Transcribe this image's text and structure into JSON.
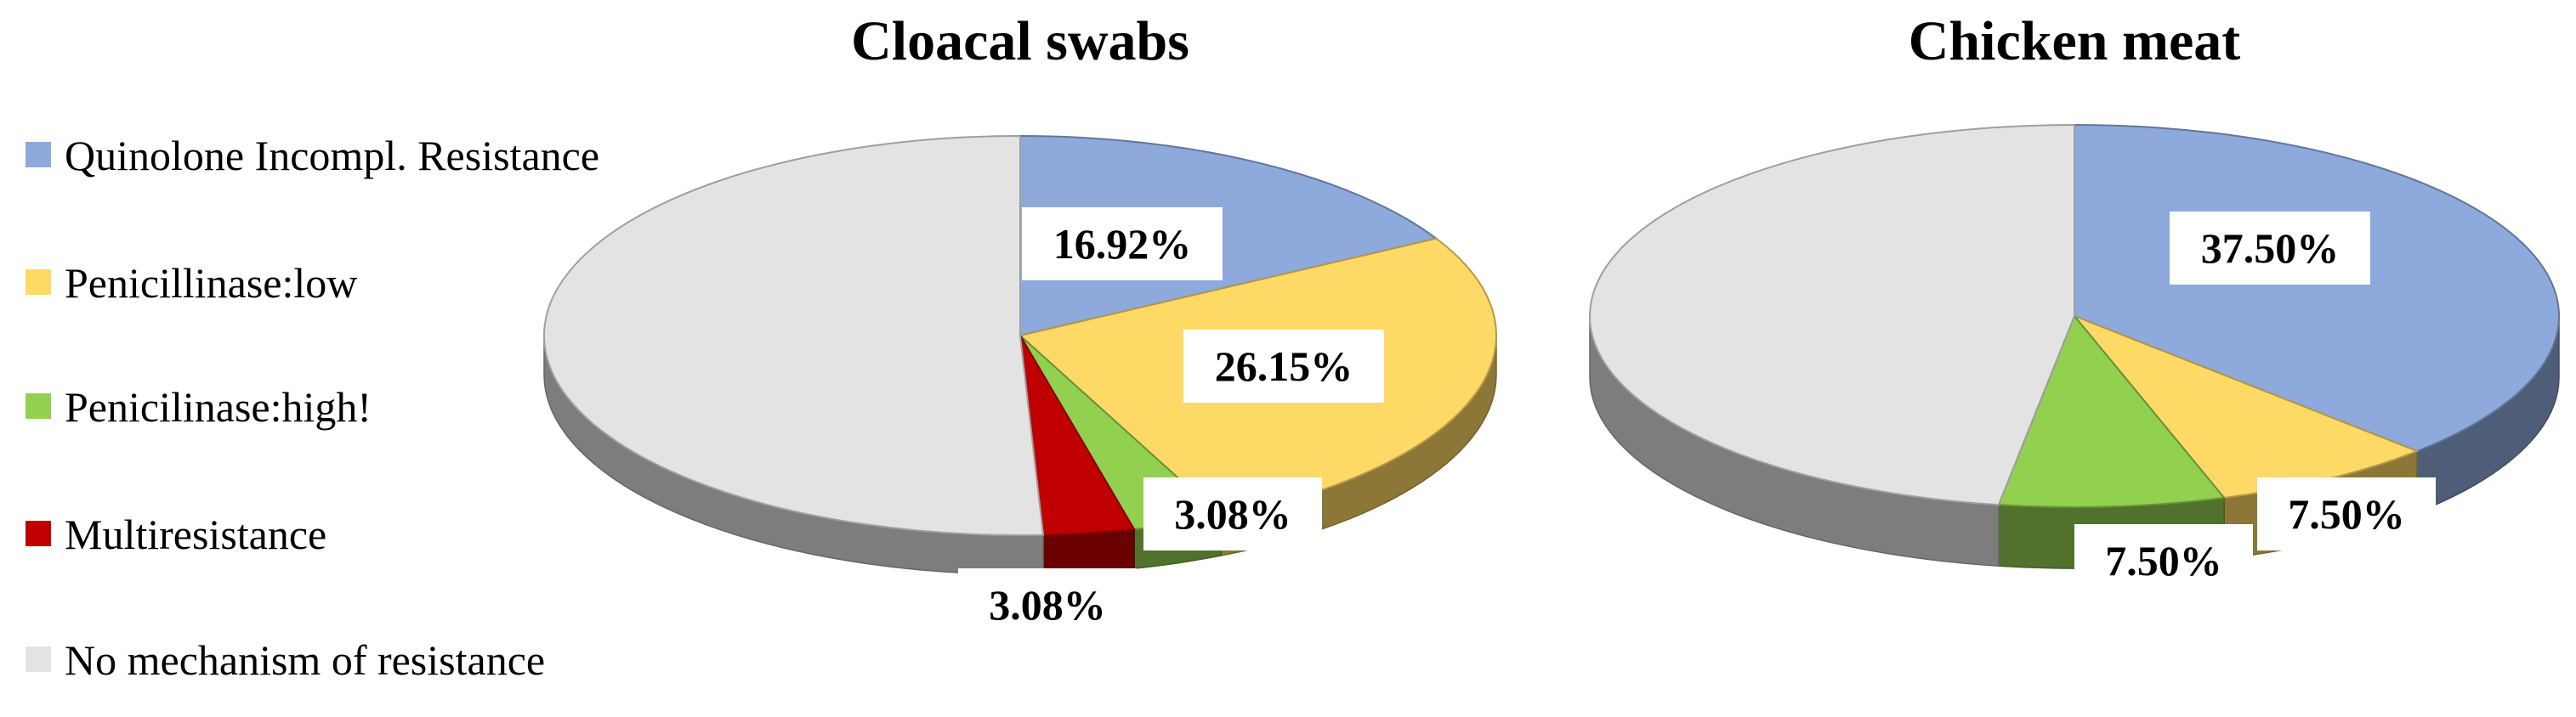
{
  "legend": [
    {
      "label": "Quinolone Incompl. Resistance",
      "color": "#8EA9DB"
    },
    {
      "label": "Penicillinase:low",
      "color": "#FFD966"
    },
    {
      "label": "Penicilinase:high!",
      "color": "#92D050"
    },
    {
      "label": "Multiresistance",
      "color": "#C00000"
    },
    {
      "label": "No mechanism of resistance",
      "color": "#E3E3E3"
    }
  ],
  "chart_data": [
    {
      "type": "pie",
      "title": "Cloacal swabs",
      "slices": [
        {
          "name": "Quinolone Incompl. Resistance",
          "value": 16.92,
          "label": "16.92%",
          "color": "#8EA9DB"
        },
        {
          "name": "Penicillinase:low",
          "value": 26.15,
          "label": "26.15%",
          "color": "#FFD966"
        },
        {
          "name": "Penicilinase:high!",
          "value": 3.08,
          "label": "3.08%",
          "color": "#92D050"
        },
        {
          "name": "Multiresistance",
          "value": 3.08,
          "label": "3.08%",
          "color": "#C00000"
        },
        {
          "name": "No mechanism of resistance",
          "value": 50.77,
          "label": "",
          "color": "#E3E3E3"
        }
      ]
    },
    {
      "type": "pie",
      "title": "Chicken meat",
      "slices": [
        {
          "name": "Quinolone Incompl. Resistance",
          "value": 37.5,
          "label": "37.50%",
          "color": "#8EA9DB"
        },
        {
          "name": "Penicillinase:low",
          "value": 7.5,
          "label": "7.50%",
          "color": "#FFD966"
        },
        {
          "name": "Penicilinase:high!",
          "value": 7.5,
          "label": "7.50%",
          "color": "#92D050"
        },
        {
          "name": "Multiresistance",
          "value": 0,
          "label": "",
          "color": "#C00000"
        },
        {
          "name": "No mechanism of resistance",
          "value": 47.5,
          "label": "",
          "color": "#E3E3E3"
        }
      ]
    }
  ]
}
